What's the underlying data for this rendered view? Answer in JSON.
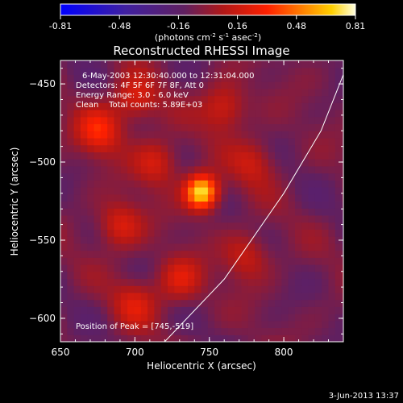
{
  "chart_data": {
    "type": "heatmap",
    "title": "Reconstructed RHESSI Image",
    "xlabel": "Heliocentric X (arcsec)",
    "ylabel": "Heliocentric Y (arcsec)",
    "xlim": [
      650,
      840
    ],
    "ylim": [
      -615,
      -435
    ],
    "x_ticks": [
      650,
      700,
      750,
      800
    ],
    "y_ticks": [
      -600,
      -550,
      -500,
      -450
    ],
    "colorbar": {
      "min": -0.81,
      "max": 0.81,
      "tick_labels": [
        "-0.81",
        "-0.48",
        "-0.16",
        "0.16",
        "0.48",
        "0.81"
      ],
      "unit_label": "(photons cm",
      "unit_sup1": "-2",
      "unit_mid": " s",
      "unit_sup2": "-1",
      "unit_mid2": " asec",
      "unit_sup3": "-2",
      "unit_end": ")"
    },
    "info_lines": [
      "6-May-2003 12:30:40.000 to 12:31:04.000",
      "Detectors: 4F 5F 6F 7F 8F, Att 0",
      "Energy Range: 3.0 - 6.0 keV",
      "Clean    Total counts: 5.89E+03"
    ],
    "peak_label": "Position of Peak = [745,-519]",
    "peak": {
      "x": 745,
      "y": -519,
      "value": 0.81
    },
    "sources": [
      {
        "x": 745,
        "y": -519,
        "value": 0.81
      },
      {
        "x": 676,
        "y": -480,
        "value": 0.33
      },
      {
        "x": 700,
        "y": -460,
        "value": 0.25
      },
      {
        "x": 760,
        "y": -465,
        "value": 0.26
      },
      {
        "x": 715,
        "y": -500,
        "value": 0.24
      },
      {
        "x": 690,
        "y": -540,
        "value": 0.26
      },
      {
        "x": 730,
        "y": -575,
        "value": 0.24
      },
      {
        "x": 775,
        "y": -560,
        "value": 0.2
      },
      {
        "x": 780,
        "y": -500,
        "value": 0.18
      },
      {
        "x": 700,
        "y": -590,
        "value": 0.2
      }
    ],
    "limb_curve": [
      [
        720,
        -615
      ],
      [
        760,
        -575
      ],
      [
        800,
        -520
      ],
      [
        825,
        -480
      ],
      [
        840,
        -444
      ]
    ],
    "timestamp": "3-Jun-2013 13:37"
  }
}
